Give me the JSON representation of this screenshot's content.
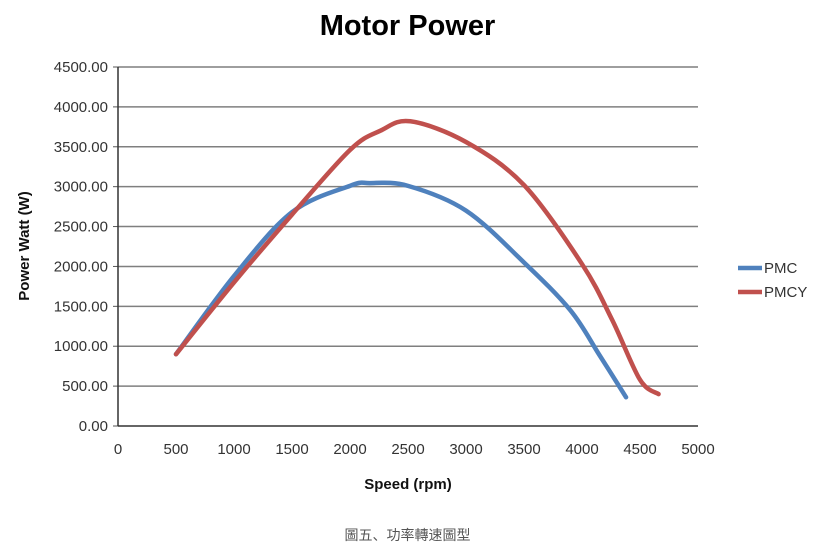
{
  "chart_data": {
    "type": "line",
    "title": "Motor Power",
    "xlabel": "Speed  (rpm)",
    "ylabel": "Power Watt (W)",
    "xlim": [
      0,
      5000
    ],
    "ylim": [
      0,
      4500
    ],
    "x_ticks": [
      "0",
      "500",
      "1000",
      "1500",
      "2000",
      "2500",
      "3000",
      "3500",
      "4000",
      "4500",
      "5000"
    ],
    "y_ticks": [
      "0.00",
      "500.00",
      "1000.00",
      "1500.00",
      "2000.00",
      "2500.00",
      "3000.00",
      "3500.00",
      "4000.00",
      "4500.00"
    ],
    "grid": "horizontal",
    "legend_position": "right",
    "series": [
      {
        "name": "PMC",
        "color": "#4F81BD",
        "x": [
          500,
          1000,
          1500,
          2000,
          2170,
          2500,
          3000,
          3500,
          3900,
          4150,
          4380
        ],
        "y": [
          900,
          1880,
          2680,
          3010,
          3045,
          3010,
          2700,
          2050,
          1450,
          890,
          360
        ]
      },
      {
        "name": "PMCY",
        "color": "#C0504D",
        "x": [
          500,
          1000,
          1500,
          2000,
          2260,
          2520,
          3000,
          3500,
          4000,
          4260,
          4500,
          4660
        ],
        "y": [
          900,
          1800,
          2650,
          3460,
          3700,
          3820,
          3560,
          3020,
          2030,
          1330,
          580,
          400
        ]
      }
    ]
  },
  "caption": "圖五、功率轉速圖型"
}
